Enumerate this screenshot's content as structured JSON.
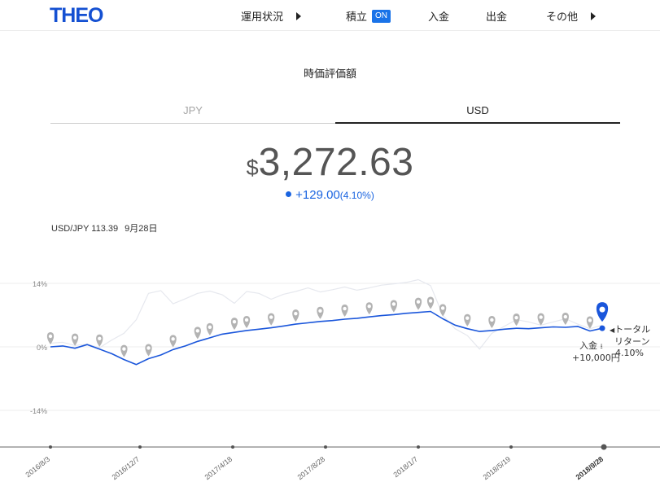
{
  "header": {
    "logo": "THEO",
    "nav": [
      {
        "label": "運用状況",
        "arrow": true
      },
      {
        "label": "積立",
        "badge": "ON"
      },
      {
        "label": "入金"
      },
      {
        "label": "出金"
      },
      {
        "label": "その他",
        "arrow": true
      }
    ]
  },
  "section": {
    "title": "時価評価額",
    "tabs": [
      {
        "label": "JPY",
        "active": false
      },
      {
        "label": "USD",
        "active": true
      }
    ]
  },
  "value": {
    "currency": "$",
    "amount": "3,272.63",
    "change": "+129.00",
    "change_pct": "(4.10%)"
  },
  "fx": {
    "label": "USD/JPY 113.39",
    "date": "9月28日"
  },
  "chart_data": {
    "type": "line",
    "y_ticks": [
      "14%",
      "0%",
      "-14%"
    ],
    "ylim": [
      -18,
      18
    ],
    "x_tick_labels": [
      "2016/8/3",
      "2016/12/7",
      "2017/4/18",
      "2017/8/28",
      "2018/1/7",
      "2018/5/19",
      "2018/9/28"
    ],
    "series": [
      {
        "values": [
          0,
          0.2,
          -0.3,
          0.5,
          -0.5,
          -1.5,
          -2.8,
          -3.9,
          -2.6,
          -1.8,
          -0.6,
          0.2,
          1.2,
          2.0,
          2.8,
          3.2,
          3.6,
          3.9,
          4.2,
          4.6,
          5.0,
          5.3,
          5.6,
          5.8,
          6.1,
          6.3,
          6.6,
          6.9,
          7.1,
          7.4,
          7.6,
          7.8,
          6.2,
          4.8,
          4.0,
          3.4,
          3.6,
          3.9,
          4.1,
          4.0,
          4.2,
          4.4,
          4.3,
          4.5,
          3.5,
          4.1
        ],
        "color": "#1a56db"
      },
      {
        "values": [
          0.8,
          1.0,
          0.3,
          0.6,
          -0.2,
          1.5,
          3.0,
          6.0,
          11.8,
          12.4,
          9.5,
          10.6,
          11.8,
          12.3,
          11.5,
          9.6,
          12.2,
          11.8,
          10.5,
          11.6,
          12.2,
          13.0,
          12.1,
          12.6,
          13.2,
          12.5,
          13.0,
          13.6,
          13.9,
          14.2,
          14.8,
          13.5,
          7.0,
          4.0,
          2.5,
          -0.5,
          3.0,
          4.5,
          6.0,
          5.5,
          4.8,
          5.5,
          6.2,
          5.0,
          4.0,
          4.8
        ],
        "color": "#e6e8ee"
      }
    ],
    "pins": [
      0,
      2,
      4,
      6,
      8,
      10,
      12,
      13,
      15,
      16,
      18,
      20,
      22,
      24,
      26,
      28,
      30,
      31,
      32,
      34,
      36,
      38,
      40,
      42,
      44
    ],
    "current_pin": "トータルリターン",
    "annotations": {
      "deposit_label": "入金",
      "deposit_amount": "+10,000円",
      "return_line1": "トータル",
      "return_line2": "リターン",
      "return_pct": "4.10%"
    }
  }
}
